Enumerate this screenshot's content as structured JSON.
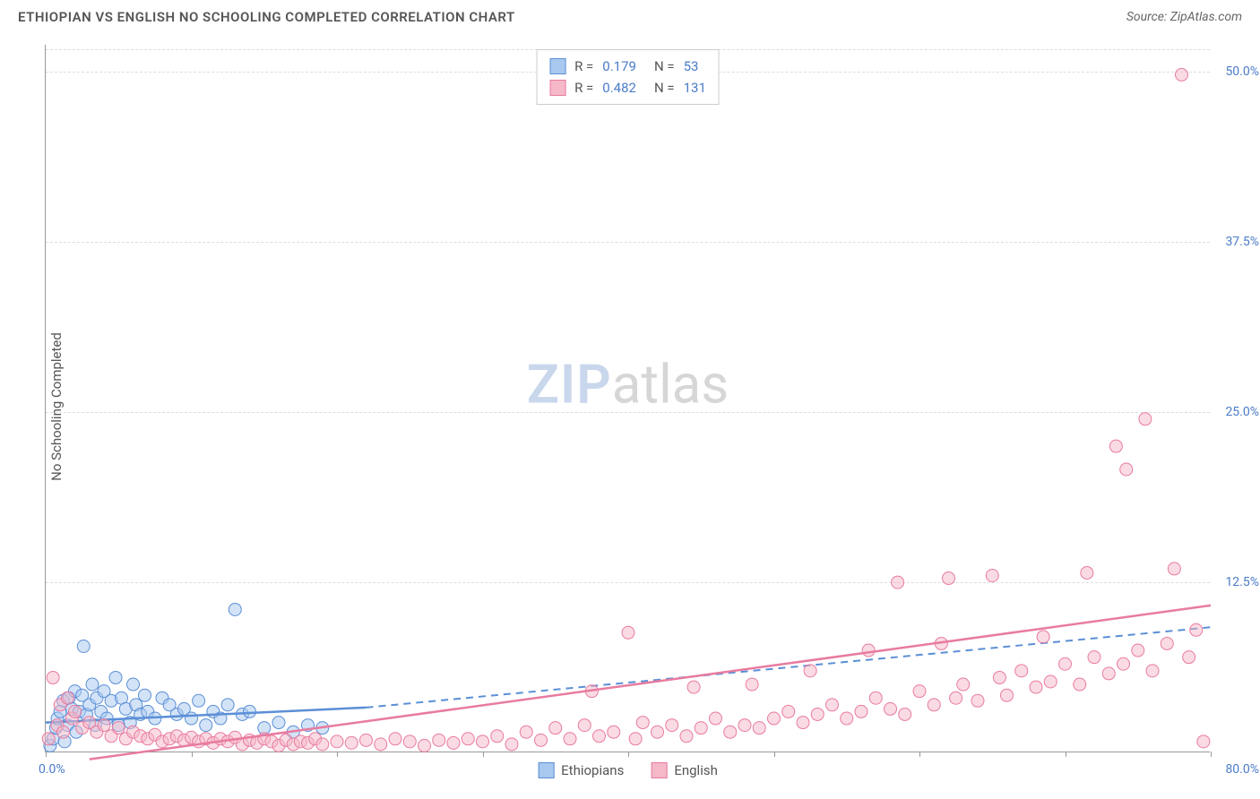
{
  "header": {
    "title": "ETHIOPIAN VS ENGLISH NO SCHOOLING COMPLETED CORRELATION CHART",
    "source": "Source: ZipAtlas.com"
  },
  "chart": {
    "type": "scatter",
    "ylabel": "No Schooling Completed",
    "xlim": [
      0,
      80
    ],
    "ylim": [
      0,
      52
    ],
    "yticks": [
      12.5,
      25.0,
      37.5,
      50.0
    ],
    "ytick_labels": [
      "12.5%",
      "25.0%",
      "37.5%",
      "50.0%"
    ],
    "xtick_positions": [
      0,
      10,
      20,
      30,
      40,
      50,
      60,
      70,
      80
    ],
    "xaxis_start_label": "0.0%",
    "xaxis_end_label": "80.0%",
    "background_color": "#ffffff",
    "grid_color": "#dddddd",
    "axis_color": "#999999",
    "tick_label_color": "#4a7bc8",
    "marker_radius": 7,
    "marker_opacity": 0.5,
    "watermark": {
      "part1": "ZIP",
      "part2": "atlas"
    },
    "series": [
      {
        "name": "Ethiopians",
        "color_fill": "#a8c8f0",
        "color_stroke": "#5b8fd6",
        "R": "0.179",
        "N": "53",
        "trend": {
          "x1": 0,
          "y1": 2.2,
          "x2": 22,
          "y2": 3.3,
          "dash_to_x": 80,
          "dash_to_y": 9.2
        },
        "points": [
          [
            0.3,
            0.5
          ],
          [
            0.5,
            1.0
          ],
          [
            0.7,
            1.8
          ],
          [
            0.8,
            2.5
          ],
          [
            1.0,
            3.0
          ],
          [
            1.2,
            3.8
          ],
          [
            1.3,
            0.8
          ],
          [
            1.5,
            2.0
          ],
          [
            1.6,
            4.0
          ],
          [
            1.8,
            3.2
          ],
          [
            2.0,
            4.5
          ],
          [
            2.1,
            1.5
          ],
          [
            2.3,
            3.0
          ],
          [
            2.5,
            4.2
          ],
          [
            2.6,
            7.8
          ],
          [
            2.8,
            2.8
          ],
          [
            3.0,
            3.5
          ],
          [
            3.2,
            5.0
          ],
          [
            3.4,
            2.0
          ],
          [
            3.5,
            4.0
          ],
          [
            3.8,
            3.0
          ],
          [
            4.0,
            4.5
          ],
          [
            4.2,
            2.5
          ],
          [
            4.5,
            3.8
          ],
          [
            4.8,
            5.5
          ],
          [
            5.0,
            2.0
          ],
          [
            5.2,
            4.0
          ],
          [
            5.5,
            3.2
          ],
          [
            5.8,
            2.2
          ],
          [
            6.0,
            5.0
          ],
          [
            6.2,
            3.5
          ],
          [
            6.5,
            2.8
          ],
          [
            6.8,
            4.2
          ],
          [
            7.0,
            3.0
          ],
          [
            7.5,
            2.5
          ],
          [
            8.0,
            4.0
          ],
          [
            8.5,
            3.5
          ],
          [
            9.0,
            2.8
          ],
          [
            9.5,
            3.2
          ],
          [
            10.0,
            2.5
          ],
          [
            10.5,
            3.8
          ],
          [
            11.0,
            2.0
          ],
          [
            11.5,
            3.0
          ],
          [
            12.0,
            2.5
          ],
          [
            12.5,
            3.5
          ],
          [
            13.0,
            10.5
          ],
          [
            13.5,
            2.8
          ],
          [
            14.0,
            3.0
          ],
          [
            15.0,
            1.8
          ],
          [
            16.0,
            2.2
          ],
          [
            17.0,
            1.5
          ],
          [
            18.0,
            2.0
          ],
          [
            19.0,
            1.8
          ]
        ]
      },
      {
        "name": "English",
        "color_fill": "#f5b8c8",
        "color_stroke": "#e87ba0",
        "R": "0.482",
        "N": "131",
        "trend": {
          "x1": 3,
          "y1": -0.5,
          "x2": 80,
          "y2": 10.8
        },
        "points": [
          [
            0.2,
            1.0
          ],
          [
            0.5,
            5.5
          ],
          [
            0.8,
            2.0
          ],
          [
            1.0,
            3.5
          ],
          [
            1.2,
            1.5
          ],
          [
            1.5,
            4.0
          ],
          [
            1.8,
            2.5
          ],
          [
            2.0,
            3.0
          ],
          [
            2.5,
            1.8
          ],
          [
            3.0,
            2.2
          ],
          [
            3.5,
            1.5
          ],
          [
            4.0,
            2.0
          ],
          [
            4.5,
            1.2
          ],
          [
            5.0,
            1.8
          ],
          [
            5.5,
            1.0
          ],
          [
            6.0,
            1.5
          ],
          [
            6.5,
            1.2
          ],
          [
            7.0,
            1.0
          ],
          [
            7.5,
            1.3
          ],
          [
            8.0,
            0.8
          ],
          [
            8.5,
            1.0
          ],
          [
            9.0,
            1.2
          ],
          [
            9.5,
            0.9
          ],
          [
            10.0,
            1.1
          ],
          [
            10.5,
            0.8
          ],
          [
            11.0,
            1.0
          ],
          [
            11.5,
            0.7
          ],
          [
            12.0,
            1.0
          ],
          [
            12.5,
            0.8
          ],
          [
            13.0,
            1.1
          ],
          [
            13.5,
            0.6
          ],
          [
            14.0,
            0.9
          ],
          [
            14.5,
            0.7
          ],
          [
            15.0,
            1.0
          ],
          [
            15.5,
            0.8
          ],
          [
            16.0,
            0.5
          ],
          [
            16.5,
            0.9
          ],
          [
            17.0,
            0.6
          ],
          [
            17.5,
            0.8
          ],
          [
            18.0,
            0.7
          ],
          [
            18.5,
            1.0
          ],
          [
            19.0,
            0.6
          ],
          [
            20.0,
            0.8
          ],
          [
            21.0,
            0.7
          ],
          [
            22.0,
            0.9
          ],
          [
            23.0,
            0.6
          ],
          [
            24.0,
            1.0
          ],
          [
            25.0,
            0.8
          ],
          [
            26.0,
            0.5
          ],
          [
            27.0,
            0.9
          ],
          [
            28.0,
            0.7
          ],
          [
            29.0,
            1.0
          ],
          [
            30.0,
            0.8
          ],
          [
            31.0,
            1.2
          ],
          [
            32.0,
            0.6
          ],
          [
            33.0,
            1.5
          ],
          [
            34.0,
            0.9
          ],
          [
            35.0,
            1.8
          ],
          [
            36.0,
            1.0
          ],
          [
            37.0,
            2.0
          ],
          [
            37.5,
            4.5
          ],
          [
            38.0,
            1.2
          ],
          [
            39.0,
            1.5
          ],
          [
            40.0,
            8.8
          ],
          [
            40.5,
            1.0
          ],
          [
            41.0,
            2.2
          ],
          [
            42.0,
            1.5
          ],
          [
            43.0,
            2.0
          ],
          [
            44.0,
            1.2
          ],
          [
            44.5,
            4.8
          ],
          [
            45.0,
            1.8
          ],
          [
            46.0,
            2.5
          ],
          [
            47.0,
            1.5
          ],
          [
            48.0,
            2.0
          ],
          [
            48.5,
            5.0
          ],
          [
            49.0,
            1.8
          ],
          [
            50.0,
            2.5
          ],
          [
            51.0,
            3.0
          ],
          [
            52.0,
            2.2
          ],
          [
            52.5,
            6.0
          ],
          [
            53.0,
            2.8
          ],
          [
            54.0,
            3.5
          ],
          [
            55.0,
            2.5
          ],
          [
            56.0,
            3.0
          ],
          [
            56.5,
            7.5
          ],
          [
            57.0,
            4.0
          ],
          [
            58.0,
            3.2
          ],
          [
            58.5,
            12.5
          ],
          [
            59.0,
            2.8
          ],
          [
            60.0,
            4.5
          ],
          [
            61.0,
            3.5
          ],
          [
            61.5,
            8.0
          ],
          [
            62.0,
            12.8
          ],
          [
            62.5,
            4.0
          ],
          [
            63.0,
            5.0
          ],
          [
            64.0,
            3.8
          ],
          [
            65.0,
            13.0
          ],
          [
            65.5,
            5.5
          ],
          [
            66.0,
            4.2
          ],
          [
            67.0,
            6.0
          ],
          [
            68.0,
            4.8
          ],
          [
            68.5,
            8.5
          ],
          [
            69.0,
            5.2
          ],
          [
            70.0,
            6.5
          ],
          [
            71.0,
            5.0
          ],
          [
            71.5,
            13.2
          ],
          [
            72.0,
            7.0
          ],
          [
            73.0,
            5.8
          ],
          [
            73.5,
            22.5
          ],
          [
            74.0,
            6.5
          ],
          [
            74.2,
            20.8
          ],
          [
            75.0,
            7.5
          ],
          [
            75.5,
            24.5
          ],
          [
            76.0,
            6.0
          ],
          [
            77.0,
            8.0
          ],
          [
            77.5,
            13.5
          ],
          [
            78.0,
            49.8
          ],
          [
            78.5,
            7.0
          ],
          [
            79.0,
            9.0
          ],
          [
            79.5,
            0.8
          ]
        ]
      }
    ],
    "legend_bottom": [
      {
        "label": "Ethiopians",
        "fill": "#a8c8f0",
        "stroke": "#5b8fd6"
      },
      {
        "label": "English",
        "fill": "#f5b8c8",
        "stroke": "#e87ba0"
      }
    ]
  }
}
